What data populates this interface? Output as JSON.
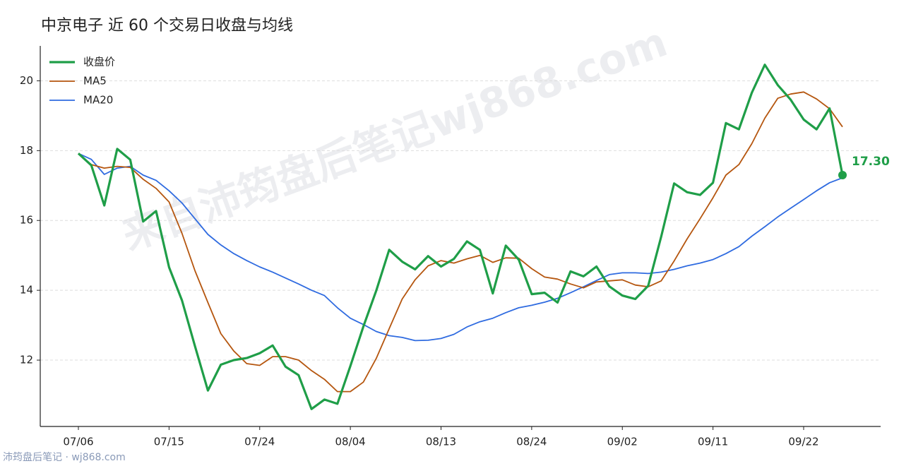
{
  "chart_data": {
    "type": "line",
    "title": "中京电子 近 60 个交易日收盘与均线",
    "watermark": "来自沛筠盘后笔记wj868.com",
    "footer": "沛筠盘后笔记 · wj868.com",
    "categories": [
      "07/06",
      null,
      null,
      null,
      null,
      null,
      null,
      "07/15",
      null,
      null,
      null,
      null,
      null,
      null,
      "07/24",
      null,
      null,
      null,
      null,
      null,
      null,
      "08/04",
      null,
      null,
      null,
      null,
      null,
      null,
      "08/13",
      null,
      null,
      null,
      null,
      null,
      null,
      "08/24",
      null,
      null,
      null,
      null,
      null,
      null,
      "09/02",
      null,
      null,
      null,
      null,
      null,
      null,
      "09/11",
      null,
      null,
      null,
      null,
      null,
      null,
      "09/22",
      null,
      null,
      null
    ],
    "series": [
      {
        "name": "收盘价",
        "color": "#1f9e48",
        "values": [
          17.92,
          17.58,
          16.43,
          18.05,
          17.74,
          15.97,
          16.27,
          14.66,
          13.71,
          12.4,
          11.13,
          11.87,
          12.0,
          12.06,
          12.2,
          12.42,
          11.81,
          11.57,
          10.6,
          10.87,
          10.75,
          11.83,
          12.96,
          13.99,
          15.16,
          14.82,
          14.6,
          14.98,
          14.68,
          14.9,
          15.4,
          15.16,
          13.91,
          15.28,
          14.88,
          13.89,
          13.93,
          13.65,
          14.54,
          14.4,
          14.68,
          14.11,
          13.85,
          13.75,
          14.13,
          15.54,
          17.06,
          16.81,
          16.73,
          17.08,
          18.79,
          18.61,
          19.66,
          20.46,
          19.88,
          19.46,
          18.89,
          18.61,
          19.21,
          17.3
        ],
        "value_labels": [
          null,
          null,
          null,
          null,
          null,
          null,
          null,
          null,
          null,
          null,
          null,
          null,
          null,
          null,
          null,
          null,
          null,
          null,
          null,
          null,
          null,
          null,
          null,
          null,
          null,
          null,
          null,
          null,
          null,
          null,
          null,
          null,
          null,
          null,
          null,
          null,
          null,
          null,
          null,
          null,
          null,
          null,
          null,
          null,
          null,
          null,
          null,
          null,
          null,
          null,
          null,
          null,
          null,
          null,
          null,
          null,
          null,
          null,
          null,
          "17.30"
        ]
      },
      {
        "name": "MA5",
        "color": "#b5560f",
        "values": [
          17.92,
          17.6,
          17.5,
          17.55,
          17.52,
          17.18,
          16.92,
          16.53,
          15.63,
          14.56,
          13.65,
          12.76,
          12.26,
          11.9,
          11.85,
          12.1,
          12.1,
          12.0,
          11.7,
          11.45,
          11.1,
          11.1,
          11.37,
          12.05,
          12.9,
          13.75,
          14.3,
          14.7,
          14.85,
          14.78,
          14.9,
          15.0,
          14.8,
          14.93,
          14.92,
          14.62,
          14.38,
          14.32,
          14.18,
          14.07,
          14.24,
          14.27,
          14.3,
          14.15,
          14.1,
          14.27,
          14.84,
          15.47,
          16.05,
          16.65,
          17.3,
          17.6,
          18.2,
          18.93,
          19.5,
          19.62,
          19.68,
          19.48,
          19.2,
          18.68
        ]
      },
      {
        "name": "MA20",
        "color": "#2f6be0",
        "values": [
          17.92,
          17.75,
          17.32,
          17.5,
          17.55,
          17.3,
          17.15,
          16.85,
          16.5,
          16.05,
          15.6,
          15.3,
          15.05,
          14.85,
          14.67,
          14.52,
          14.35,
          14.18,
          14.0,
          13.85,
          13.5,
          13.2,
          13.02,
          12.82,
          12.7,
          12.65,
          12.56,
          12.57,
          12.62,
          12.74,
          12.95,
          13.1,
          13.2,
          13.36,
          13.5,
          13.57,
          13.66,
          13.77,
          13.93,
          14.1,
          14.28,
          14.45,
          14.5,
          14.5,
          14.48,
          14.52,
          14.6,
          14.7,
          14.78,
          14.88,
          15.05,
          15.25,
          15.55,
          15.82,
          16.1,
          16.35,
          16.6,
          16.85,
          17.08,
          17.22
        ]
      }
    ],
    "ylim": [
      10.1,
      21.0
    ],
    "yticks": [
      12,
      14,
      16,
      18,
      20
    ],
    "grid": true,
    "legend": "upper-left"
  }
}
